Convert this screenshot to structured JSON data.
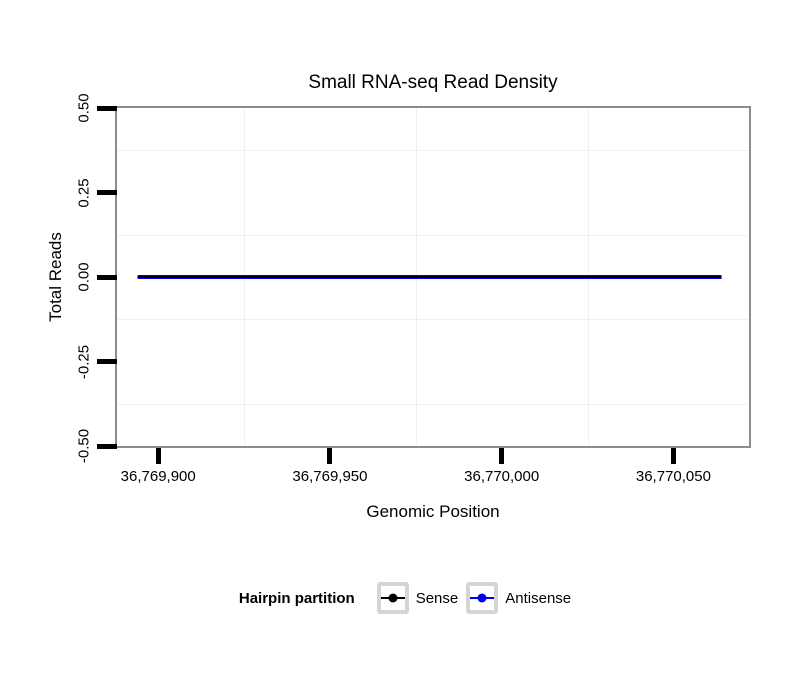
{
  "figure": {
    "title": "Small RNA-seq Read Density",
    "x_axis": {
      "label": "Genomic Position"
    },
    "y_axis": {
      "label": "Total Reads"
    }
  },
  "chart_data": {
    "type": "line",
    "title": "Small RNA-seq Read Density",
    "xlabel": "Genomic Position",
    "ylabel": "Total Reads",
    "xlim": [
      36769888,
      36770072
    ],
    "ylim": [
      -0.5,
      0.5
    ],
    "x_ticks": [
      36769900,
      36769950,
      36770000,
      36770050
    ],
    "x_tick_labels": [
      "36,769,900",
      "36,769,950",
      "36,770,000",
      "36,770,050"
    ],
    "y_ticks": [
      0.5,
      0.25,
      0,
      -0.25,
      -0.5
    ],
    "y_tick_labels": [
      "0.50",
      "0.25",
      "0.00",
      "-0.25",
      "-0.50"
    ],
    "grid": {
      "minor_only": true,
      "color": "#f0f0f0"
    },
    "series": [
      {
        "name": "Sense",
        "color": "#000000",
        "stroke_width": 2,
        "x": [
          36769894,
          36770064
        ],
        "y": [
          0,
          0
        ]
      },
      {
        "name": "Antisense",
        "color": "#0000EE",
        "stroke_width": 4,
        "x": [
          36769894,
          36770064
        ],
        "y": [
          0,
          0
        ]
      }
    ],
    "legend": {
      "title": "Hairpin partition",
      "position": "bottom",
      "entries": [
        {
          "label": "Sense",
          "color": "#000000"
        },
        {
          "label": "Antisense",
          "color": "#0000EE"
        }
      ]
    },
    "colors": {
      "panel_border": "#8c8c8c",
      "tick": "#000000",
      "text": "#000000",
      "legend_key_border": "#d5d5d5"
    }
  }
}
